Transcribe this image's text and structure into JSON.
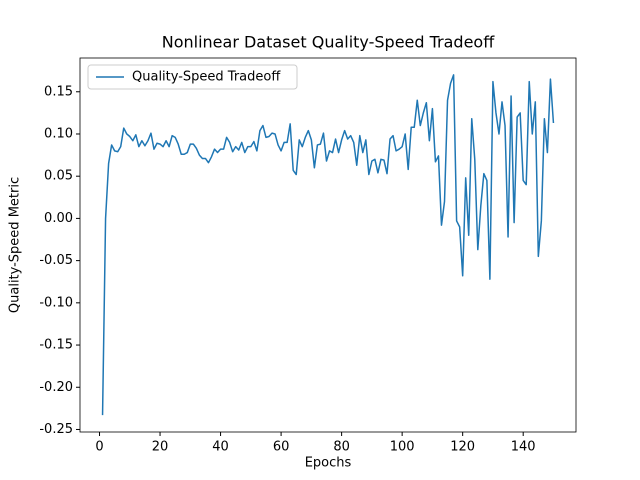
{
  "chart_data": {
    "type": "line",
    "title": "Nonlinear Dataset Quality-Speed Tradeoff",
    "x_label": "Epochs",
    "y_label": "Quality-Speed Metric",
    "x": [
      1,
      2,
      3,
      4,
      5,
      6,
      7,
      8,
      9,
      10,
      11,
      12,
      13,
      14,
      15,
      16,
      17,
      18,
      19,
      20,
      21,
      22,
      23,
      24,
      25,
      26,
      27,
      28,
      29,
      30,
      31,
      32,
      33,
      34,
      35,
      36,
      37,
      38,
      39,
      40,
      41,
      42,
      43,
      44,
      45,
      46,
      47,
      48,
      49,
      50,
      51,
      52,
      53,
      54,
      55,
      56,
      57,
      58,
      59,
      60,
      61,
      62,
      63,
      64,
      65,
      66,
      67,
      68,
      69,
      70,
      71,
      72,
      73,
      74,
      75,
      76,
      77,
      78,
      79,
      80,
      81,
      82,
      83,
      84,
      85,
      86,
      87,
      88,
      89,
      90,
      91,
      92,
      93,
      94,
      95,
      96,
      97,
      98,
      99,
      100,
      101,
      102,
      103,
      104,
      105,
      106,
      107,
      108,
      109,
      110,
      111,
      112,
      113,
      114,
      115,
      116,
      117,
      118,
      119,
      120,
      121,
      122,
      123,
      124,
      125,
      126,
      127,
      128,
      129,
      130,
      131,
      132,
      133,
      134,
      135,
      136,
      137,
      138,
      139,
      140,
      141,
      142,
      143,
      144,
      145,
      146,
      147,
      148,
      149,
      150
    ],
    "series": [
      {
        "name": "Quality-Speed Tradeoff",
        "color": "#1f77b4",
        "values": [
          -0.233,
          0.0,
          0.065,
          0.087,
          0.08,
          0.079,
          0.085,
          0.107,
          0.1,
          0.097,
          0.092,
          0.099,
          0.085,
          0.092,
          0.086,
          0.092,
          0.101,
          0.082,
          0.089,
          0.088,
          0.085,
          0.092,
          0.085,
          0.098,
          0.096,
          0.088,
          0.076,
          0.076,
          0.078,
          0.088,
          0.088,
          0.083,
          0.075,
          0.071,
          0.071,
          0.066,
          0.073,
          0.082,
          0.078,
          0.082,
          0.082,
          0.096,
          0.09,
          0.079,
          0.085,
          0.081,
          0.09,
          0.078,
          0.085,
          0.085,
          0.091,
          0.08,
          0.104,
          0.11,
          0.096,
          0.097,
          0.101,
          0.1,
          0.087,
          0.08,
          0.09,
          0.09,
          0.112,
          0.057,
          0.052,
          0.093,
          0.085,
          0.096,
          0.104,
          0.093,
          0.06,
          0.087,
          0.088,
          0.101,
          0.068,
          0.08,
          0.078,
          0.094,
          0.078,
          0.093,
          0.104,
          0.094,
          0.098,
          0.09,
          0.063,
          0.098,
          0.078,
          0.093,
          0.052,
          0.068,
          0.07,
          0.054,
          0.07,
          0.069,
          0.053,
          0.094,
          0.098,
          0.08,
          0.082,
          0.085,
          0.1,
          0.058,
          0.108,
          0.108,
          0.14,
          0.11,
          0.125,
          0.137,
          0.092,
          0.13,
          0.067,
          0.074,
          -0.008,
          0.02,
          0.14,
          0.16,
          0.17,
          -0.003,
          -0.01,
          -0.068,
          0.048,
          -0.02,
          0.118,
          0.07,
          -0.037,
          0.015,
          0.053,
          0.045,
          -0.072,
          0.162,
          0.125,
          0.1,
          0.138,
          0.11,
          -0.022,
          0.145,
          -0.005,
          0.12,
          0.125,
          0.045,
          0.04,
          0.162,
          0.1,
          0.138,
          -0.045,
          -0.003,
          0.118,
          0.078,
          0.165,
          0.113
        ]
      }
    ],
    "xlim": [
      -6.45,
      157.45
    ],
    "ylim": [
      -0.253,
      0.19
    ],
    "xticks": [
      0,
      20,
      40,
      60,
      80,
      100,
      120,
      140
    ],
    "yticks": [
      -0.25,
      {
        "value": -0.2,
        "label": "-0.20"
      },
      -0.15,
      {
        "value": -0.1,
        "label": "-0.10"
      },
      -0.05,
      {
        "value": 0,
        "label": "0.00"
      },
      0.05,
      {
        "value": 0.1,
        "label": "0.10"
      },
      0.15
    ],
    "legend": "upper left",
    "grid": false
  }
}
